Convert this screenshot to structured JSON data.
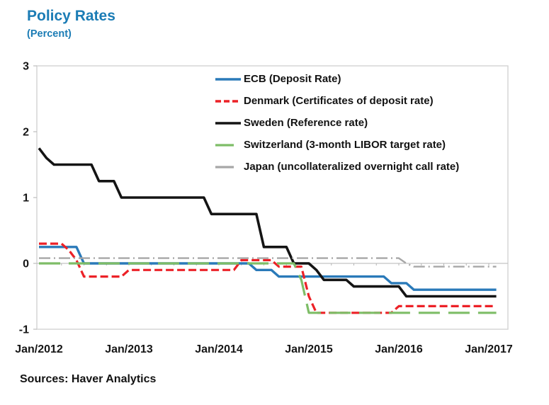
{
  "header": {
    "title": "Policy Rates",
    "subtitle": "(Percent)"
  },
  "footer": {
    "source": "Sources: Haver Analytics"
  },
  "colors": {
    "title_blue": "#1B7CB5",
    "axis_text": "#161616",
    "plot_border": "#d3d3d3",
    "zero_line": "#c4c4c4"
  },
  "chart_data": {
    "type": "line",
    "title": "Policy Rates",
    "subtitle": "(Percent)",
    "xlabel": "",
    "ylabel": "Percent",
    "ylim": [
      -1,
      3
    ],
    "grid": "zero line only, boxed plot area",
    "legend_position": "top-right inside plot, no border",
    "x_frequency": "monthly",
    "x_range": "Jan/2012 to Feb/2017",
    "x_tick_labels": [
      "Jan/2012",
      "Jan/2013",
      "Jan/2014",
      "Jan/2015",
      "Jan/2016",
      "Jan/2017"
    ],
    "x_tick_years": [
      2012,
      2013,
      2014,
      2015,
      2016,
      2017
    ],
    "y_tick_labels": [
      "3",
      "2",
      "1",
      "0",
      "-1"
    ],
    "y_ticks": [
      3,
      2,
      1,
      0,
      -1
    ],
    "series": [
      {
        "id": "ecb",
        "name": "ECB (Deposit Rate)",
        "color": "#2A7AB9",
        "line_style": "solid",
        "width": 3.4,
        "values": [
          0.25,
          0.25,
          0.25,
          0.25,
          0.25,
          0.25,
          0,
          0,
          0,
          0,
          0,
          0,
          0,
          0,
          0,
          0,
          0,
          0,
          0,
          0,
          0,
          0,
          0,
          0,
          0,
          0,
          0,
          0,
          0,
          -0.1,
          -0.1,
          -0.1,
          -0.2,
          -0.2,
          -0.2,
          -0.2,
          -0.2,
          -0.2,
          -0.2,
          -0.2,
          -0.2,
          -0.2,
          -0.2,
          -0.2,
          -0.2,
          -0.2,
          -0.2,
          -0.3,
          -0.3,
          -0.3,
          -0.4,
          -0.4,
          -0.4,
          -0.4,
          -0.4,
          -0.4,
          -0.4,
          -0.4,
          -0.4,
          -0.4,
          -0.4,
          -0.4
        ]
      },
      {
        "id": "denmark",
        "name": "Denmark (Certificates of deposit rate)",
        "color": "#EC2127",
        "line_style": "dashed",
        "width": 3.2,
        "values": [
          0.3,
          0.3,
          0.3,
          0.3,
          0.2,
          0.05,
          -0.2,
          -0.2,
          -0.2,
          -0.2,
          -0.2,
          -0.2,
          -0.1,
          -0.1,
          -0.1,
          -0.1,
          -0.1,
          -0.1,
          -0.1,
          -0.1,
          -0.1,
          -0.1,
          -0.1,
          -0.1,
          -0.1,
          -0.1,
          -0.1,
          0.05,
          0.05,
          0.05,
          0.05,
          0.05,
          -0.05,
          -0.05,
          -0.05,
          -0.05,
          -0.5,
          -0.75,
          -0.75,
          -0.75,
          -0.75,
          -0.75,
          -0.75,
          -0.75,
          -0.75,
          -0.75,
          -0.75,
          -0.75,
          -0.65,
          -0.65,
          -0.65,
          -0.65,
          -0.65,
          -0.65,
          -0.65,
          -0.65,
          -0.65,
          -0.65,
          -0.65,
          -0.65,
          -0.65,
          -0.65
        ]
      },
      {
        "id": "sweden",
        "name": "Sweden (Reference rate)",
        "color": "#141414",
        "line_style": "solid",
        "width": 3.6,
        "values": [
          1.75,
          1.6,
          1.5,
          1.5,
          1.5,
          1.5,
          1.5,
          1.5,
          1.25,
          1.25,
          1.25,
          1,
          1,
          1,
          1,
          1,
          1,
          1,
          1,
          1,
          1,
          1,
          1,
          0.75,
          0.75,
          0.75,
          0.75,
          0.75,
          0.75,
          0.75,
          0.25,
          0.25,
          0.25,
          0.25,
          0,
          0,
          0,
          -0.1,
          -0.25,
          -0.25,
          -0.25,
          -0.25,
          -0.35,
          -0.35,
          -0.35,
          -0.35,
          -0.35,
          -0.35,
          -0.35,
          -0.5,
          -0.5,
          -0.5,
          -0.5,
          -0.5,
          -0.5,
          -0.5,
          -0.5,
          -0.5,
          -0.5,
          -0.5,
          -0.5,
          -0.5
        ]
      },
      {
        "id": "switzerland",
        "name": "Switzerland (3-month LIBOR target rate)",
        "color": "#7EBD67",
        "line_style": "long-dash",
        "width": 3.2,
        "values": [
          0,
          0,
          0,
          0,
          0,
          0,
          0,
          0,
          0,
          0,
          0,
          0,
          0,
          0,
          0,
          0,
          0,
          0,
          0,
          0,
          0,
          0,
          0,
          0,
          0,
          0,
          0,
          0,
          0,
          0,
          0,
          0,
          0,
          0,
          0,
          -0.25,
          -0.75,
          -0.75,
          -0.75,
          -0.75,
          -0.75,
          -0.75,
          -0.75,
          -0.75,
          -0.75,
          -0.75,
          -0.75,
          -0.75,
          -0.75,
          -0.75,
          -0.75,
          -0.75,
          -0.75,
          -0.75,
          -0.75,
          -0.75,
          -0.75,
          -0.75,
          -0.75,
          -0.75,
          -0.75,
          -0.75
        ]
      },
      {
        "id": "japan",
        "name": "Japan (uncollateralized overnight call rate)",
        "color": "#A7A7A7",
        "line_style": "dash-dot",
        "width": 2.4,
        "values": [
          0.08,
          0.08,
          0.08,
          0.08,
          0.08,
          0.08,
          0.08,
          0.08,
          0.08,
          0.08,
          0.08,
          0.08,
          0.08,
          0.08,
          0.08,
          0.08,
          0.08,
          0.08,
          0.08,
          0.08,
          0.08,
          0.08,
          0.08,
          0.08,
          0.08,
          0.08,
          0.08,
          0.08,
          0.08,
          0.08,
          0.08,
          0.08,
          0.08,
          0.08,
          0.08,
          0.08,
          0.08,
          0.08,
          0.08,
          0.08,
          0.08,
          0.08,
          0.08,
          0.08,
          0.08,
          0.08,
          0.08,
          0.08,
          0.08,
          0,
          -0.05,
          -0.05,
          -0.05,
          -0.05,
          -0.05,
          -0.05,
          -0.05,
          -0.05,
          -0.05,
          -0.05,
          -0.05,
          -0.05
        ]
      }
    ]
  }
}
